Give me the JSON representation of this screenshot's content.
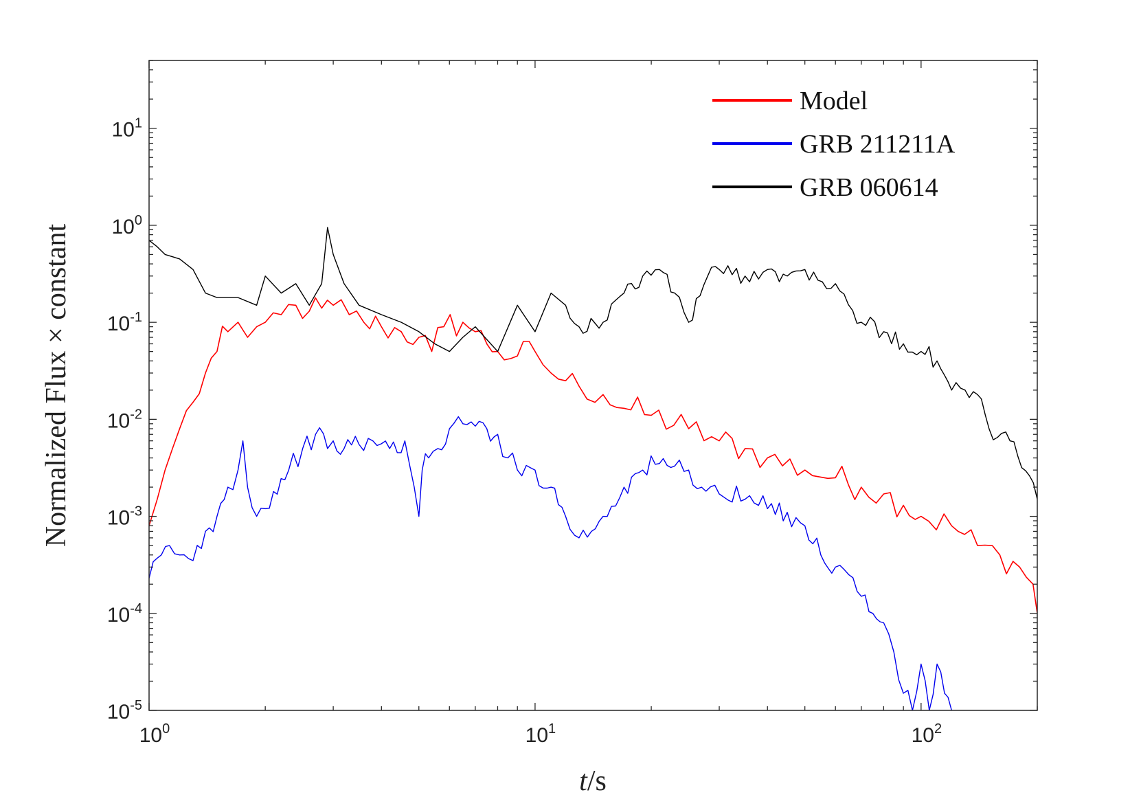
{
  "chart_data": {
    "type": "line",
    "xscale": "log",
    "yscale": "log",
    "xlim": [
      1,
      200
    ],
    "ylim": [
      1e-05,
      50
    ],
    "xlabel": "t/s",
    "xlabel_var": "t",
    "xlabel_unit": "/s",
    "ylabel": "Normalized Flux × constant",
    "x_ticks": [
      {
        "value": 1,
        "base": "10",
        "exp": "0"
      },
      {
        "value": 10,
        "base": "10",
        "exp": "1"
      },
      {
        "value": 100,
        "base": "10",
        "exp": "2"
      }
    ],
    "y_ticks": [
      {
        "value": 1e-05,
        "base": "10",
        "exp": "-5"
      },
      {
        "value": 0.0001,
        "base": "10",
        "exp": "-4"
      },
      {
        "value": 0.001,
        "base": "10",
        "exp": "-3"
      },
      {
        "value": 0.01,
        "base": "10",
        "exp": "-2"
      },
      {
        "value": 0.1,
        "base": "10",
        "exp": "-1"
      },
      {
        "value": 1,
        "base": "10",
        "exp": "0"
      },
      {
        "value": 10,
        "base": "10",
        "exp": "1"
      }
    ],
    "legend_position": "top-right",
    "series": [
      {
        "name": "Model",
        "color": "#ff0000",
        "x": [
          1.0,
          1.05,
          1.1,
          1.15,
          1.2,
          1.3,
          1.4,
          1.5,
          1.6,
          1.7,
          1.8,
          1.9,
          2.0,
          2.2,
          2.4,
          2.6,
          2.8,
          3.0,
          3.3,
          3.6,
          4.0,
          4.5,
          5.0,
          5.4,
          5.8,
          6.5,
          7.0,
          7.5,
          8.0,
          9.0,
          10.0,
          11.0,
          12.0,
          13.0,
          15.0,
          17.0,
          20.0,
          25.0,
          30.0,
          35.0,
          40.0,
          50.0,
          60.0,
          70.0,
          80.0,
          90.0,
          100.0,
          120.0,
          140.0,
          160.0,
          180.0,
          195.0,
          200.0
        ],
        "y": [
          0.0008,
          0.0015,
          0.003,
          0.005,
          0.008,
          0.015,
          0.03,
          0.05,
          0.08,
          0.1,
          0.07,
          0.09,
          0.1,
          0.12,
          0.15,
          0.13,
          0.14,
          0.15,
          0.12,
          0.1,
          0.09,
          0.08,
          0.07,
          0.05,
          0.09,
          0.1,
          0.08,
          0.06,
          0.05,
          0.045,
          0.05,
          0.03,
          0.025,
          0.022,
          0.018,
          0.013,
          0.011,
          0.008,
          0.006,
          0.005,
          0.004,
          0.003,
          0.0025,
          0.002,
          0.0017,
          0.0013,
          0.001,
          0.0008,
          0.0005,
          0.0004,
          0.0003,
          0.0002,
          0.0001
        ]
      },
      {
        "name": "GRB 211211A",
        "color": "#0000ee",
        "x": [
          1.0,
          1.13,
          1.2,
          1.3,
          1.4,
          1.5,
          1.6,
          1.7,
          1.75,
          1.8,
          1.9,
          2.0,
          2.1,
          2.3,
          2.5,
          2.7,
          2.9,
          3.0,
          3.2,
          3.5,
          3.8,
          4.2,
          4.6,
          5.0,
          5.1,
          5.3,
          5.6,
          6.0,
          6.5,
          7.0,
          7.5,
          8.0,
          8.5,
          9.0,
          10.0,
          11.0,
          12.0,
          13.0,
          14.0,
          15.0,
          17.0,
          19.0,
          21.0,
          23.0,
          25.0,
          27.0,
          30.0,
          35.0,
          40.0,
          45.0,
          50.0,
          55.0,
          60.0,
          65.0,
          70.0,
          75.0,
          80.0,
          85.0,
          90.0,
          95.0,
          100.0,
          105.0,
          110.0,
          115.0,
          120.0
        ],
        "y": [
          0.00023,
          0.0005,
          0.0004,
          0.00035,
          0.0007,
          0.001,
          0.002,
          0.003,
          0.006,
          0.002,
          0.001,
          0.0012,
          0.0018,
          0.003,
          0.005,
          0.007,
          0.005,
          0.006,
          0.005,
          0.0055,
          0.006,
          0.005,
          0.006,
          0.001,
          0.003,
          0.004,
          0.005,
          0.008,
          0.009,
          0.0085,
          0.008,
          0.007,
          0.004,
          0.003,
          0.003,
          0.002,
          0.001,
          0.0006,
          0.0007,
          0.001,
          0.002,
          0.003,
          0.0035,
          0.0033,
          0.003,
          0.002,
          0.0017,
          0.0015,
          0.0012,
          0.0011,
          0.0008,
          0.0004,
          0.0003,
          0.00025,
          0.00015,
          0.0001,
          8e-05,
          4e-05,
          1.5e-05,
          1e-05,
          3e-05,
          1e-05,
          3e-05,
          1.5e-05,
          1e-05
        ]
      },
      {
        "name": "GRB 060614",
        "color": "#000000",
        "x": [
          1.0,
          1.05,
          1.1,
          1.2,
          1.3,
          1.4,
          1.5,
          1.7,
          1.9,
          2.0,
          2.2,
          2.4,
          2.6,
          2.8,
          2.9,
          3.0,
          3.2,
          3.5,
          4.0,
          4.5,
          5.0,
          5.5,
          6.0,
          6.5,
          7.0,
          8.0,
          9.0,
          10.0,
          11.0,
          12.0,
          13.0,
          15.0,
          17.0,
          19.0,
          21.0,
          23.0,
          25.0,
          28.0,
          30.0,
          35.0,
          40.0,
          45.0,
          50.0,
          60.0,
          70.0,
          80.0,
          90.0,
          100.0,
          110.0,
          120.0,
          130.0,
          140.0,
          150.0,
          170.0,
          200.0
        ],
        "y": [
          0.7,
          0.6,
          0.5,
          0.45,
          0.35,
          0.2,
          0.18,
          0.18,
          0.15,
          0.3,
          0.2,
          0.25,
          0.15,
          0.25,
          0.95,
          0.5,
          0.25,
          0.15,
          0.12,
          0.1,
          0.08,
          0.06,
          0.05,
          0.07,
          0.09,
          0.05,
          0.15,
          0.08,
          0.2,
          0.15,
          0.09,
          0.1,
          0.2,
          0.3,
          0.35,
          0.2,
          0.1,
          0.3,
          0.35,
          0.3,
          0.35,
          0.3,
          0.35,
          0.25,
          0.1,
          0.08,
          0.06,
          0.05,
          0.04,
          0.02,
          0.02,
          0.018,
          0.008,
          0.006,
          0.0015
        ]
      }
    ]
  }
}
